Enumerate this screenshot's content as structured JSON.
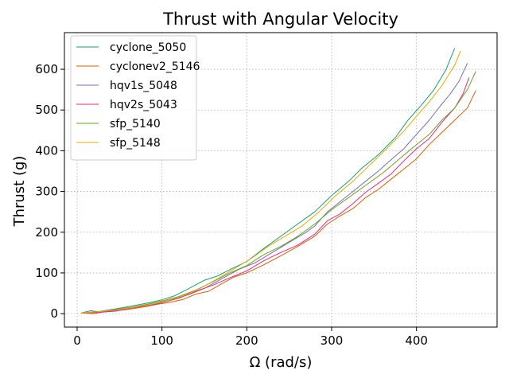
{
  "chart_data": {
    "type": "line",
    "title": "Thrust with Angular Velocity",
    "xlabel": "Ω (rad/s)",
    "ylabel": "Thrust (g)",
    "xlim": [
      -15,
      495
    ],
    "ylim": [
      -33,
      690
    ],
    "xticks": [
      0,
      100,
      200,
      300,
      400
    ],
    "yticks": [
      0,
      100,
      200,
      300,
      400,
      500,
      600
    ],
    "grid": true,
    "legend": "top-left",
    "series": [
      {
        "name": "cyclone_5050",
        "color": "#1a9e77",
        "x": [
          5,
          16,
          25,
          40,
          55,
          70,
          85,
          100,
          115,
          130,
          150,
          165,
          180,
          200,
          220,
          240,
          260,
          280,
          300,
          320,
          335,
          355,
          375,
          390,
          405,
          420,
          435,
          445
        ],
        "y": [
          2,
          7,
          5,
          10,
          15,
          21,
          27,
          34,
          44,
          60,
          82,
          92,
          108,
          128,
          160,
          190,
          220,
          250,
          290,
          325,
          356,
          390,
          432,
          475,
          510,
          548,
          600,
          652
        ]
      },
      {
        "name": "cyclonev2_5146",
        "color": "#d95f02",
        "x": [
          5,
          20,
          35,
          50,
          65,
          80,
          95,
          110,
          125,
          140,
          155,
          170,
          185,
          200,
          220,
          240,
          260,
          280,
          295,
          310,
          325,
          340,
          355,
          370,
          385,
          400,
          415,
          430,
          445,
          460,
          470
        ],
        "y": [
          2,
          0,
          6,
          8,
          12,
          17,
          23,
          28,
          35,
          48,
          55,
          73,
          90,
          100,
          120,
          142,
          165,
          190,
          220,
          240,
          258,
          285,
          305,
          330,
          355,
          380,
          415,
          445,
          475,
          505,
          548
        ]
      },
      {
        "name": "hqv1s_5048",
        "color": "#7570b3",
        "x": [
          5,
          20,
          35,
          50,
          70,
          90,
          110,
          130,
          150,
          170,
          190,
          210,
          230,
          250,
          270,
          280,
          295,
          310,
          325,
          340,
          355,
          370,
          385,
          400,
          415,
          430,
          440,
          450,
          460
        ],
        "y": [
          2,
          3,
          6,
          10,
          16,
          24,
          34,
          46,
          62,
          85,
          108,
          125,
          150,
          175,
          200,
          215,
          250,
          275,
          300,
          325,
          350,
          378,
          405,
          440,
          475,
          515,
          540,
          570,
          615
        ]
      },
      {
        "name": "hqv2s_5043",
        "color": "#e7298a",
        "x": [
          5,
          25,
          45,
          65,
          85,
          100,
          120,
          140,
          160,
          180,
          200,
          220,
          240,
          260,
          280,
          295,
          310,
          325,
          340,
          355,
          370,
          385,
          400,
          415,
          430,
          445,
          455,
          462
        ],
        "y": [
          2,
          3,
          6,
          14,
          20,
          27,
          38,
          55,
          70,
          88,
          105,
          130,
          150,
          168,
          195,
          228,
          245,
          270,
          298,
          320,
          343,
          375,
          405,
          430,
          470,
          505,
          540,
          580
        ]
      },
      {
        "name": "sfp_5140",
        "color": "#66a61e",
        "x": [
          5,
          25,
          45,
          65,
          85,
          100,
          120,
          140,
          160,
          180,
          200,
          220,
          240,
          260,
          280,
          300,
          320,
          340,
          360,
          380,
          400,
          415,
          430,
          445,
          460,
          470
        ],
        "y": [
          2,
          5,
          10,
          16,
          24,
          31,
          42,
          58,
          78,
          100,
          118,
          145,
          165,
          190,
          220,
          255,
          285,
          315,
          345,
          380,
          415,
          440,
          475,
          505,
          550,
          595
        ]
      },
      {
        "name": "sfp_5148",
        "color": "#e6ab02",
        "x": [
          5,
          25,
          45,
          65,
          85,
          105,
          125,
          145,
          165,
          185,
          205,
          225,
          245,
          265,
          285,
          305,
          325,
          345,
          365,
          385,
          400,
          415,
          430,
          445,
          452
        ],
        "y": [
          2,
          5,
          9,
          15,
          22,
          31,
          44,
          62,
          85,
          110,
          135,
          165,
          190,
          215,
          250,
          290,
          325,
          365,
          405,
          448,
          485,
          520,
          560,
          610,
          645
        ]
      }
    ]
  }
}
